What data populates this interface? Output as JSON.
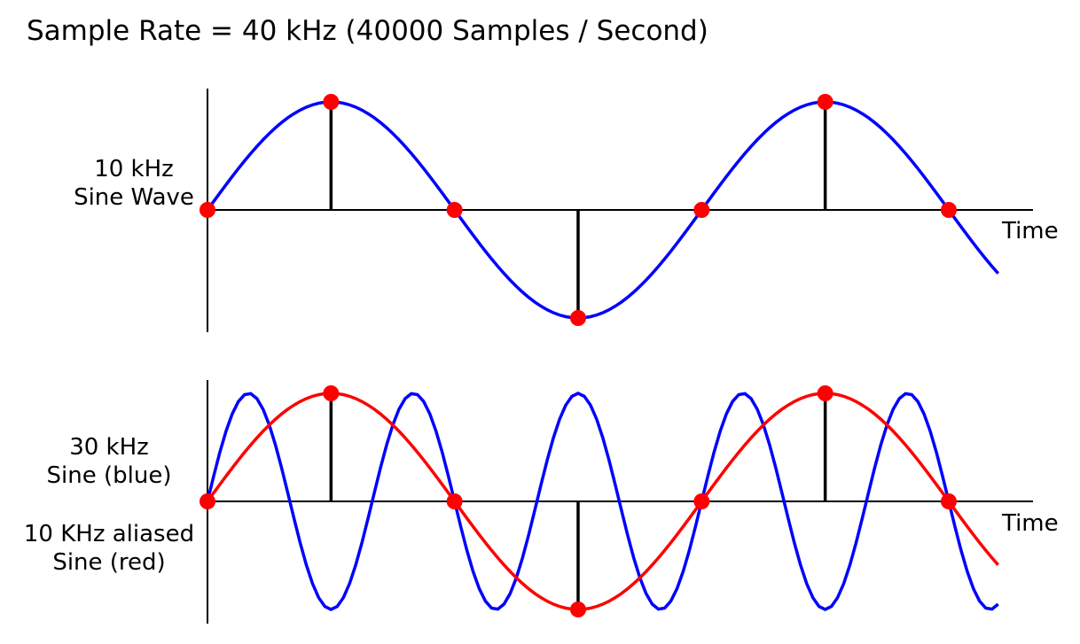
{
  "title": "Sample Rate = 40 kHz (40000 Samples / Second)",
  "colors": {
    "blue": "#0000ff",
    "red": "#ff0000",
    "axis": "#000000",
    "sample_dot": "#ff0000"
  },
  "chart_data": [
    {
      "type": "line",
      "title": "",
      "xlabel": "Time",
      "ylabel_lines": [
        "10 kHz",
        "Sine Wave"
      ],
      "x_unit": "samples (1 sample = 25 µs)",
      "xlim": [
        0,
        6.4
      ],
      "ylim": [
        -1,
        1
      ],
      "series": [
        {
          "name": "",
          "color": "#0000ff",
          "frequency_cycles_per_sample": 0.25
        }
      ],
      "samples": {
        "x": [
          0,
          1,
          2,
          3,
          4,
          5,
          6
        ],
        "y": [
          0,
          1,
          0,
          -1,
          0,
          1,
          0
        ]
      },
      "grid": false,
      "legend": "none"
    },
    {
      "type": "line",
      "title": "",
      "xlabel": "Time",
      "ylabel_lines": [
        "30 kHz",
        "Sine (blue)",
        "10 KHz aliased",
        "Sine (red)"
      ],
      "x_unit": "samples (1 sample = 25 µs)",
      "xlim": [
        0,
        6.4
      ],
      "ylim": [
        -1,
        1
      ],
      "series": [
        {
          "name": "30 kHz Sine (blue)",
          "color": "#0000ff",
          "frequency_cycles_per_sample": 0.75
        },
        {
          "name": "10 KHz aliased Sine (red)",
          "color": "#ff0000",
          "frequency_cycles_per_sample": 0.25
        }
      ],
      "samples": {
        "x": [
          0,
          1,
          2,
          3,
          4,
          5,
          6
        ],
        "y": [
          0,
          1,
          0,
          -1,
          0,
          1,
          0
        ]
      },
      "grid": false,
      "legend": "none"
    }
  ]
}
